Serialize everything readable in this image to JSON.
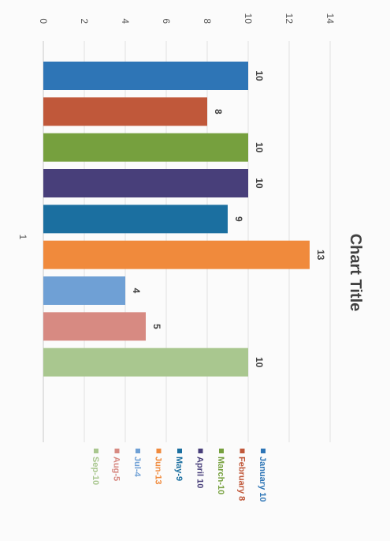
{
  "chart_data": {
    "type": "bar",
    "orientation": "rotated-90-clockwise",
    "title": "Chart Title",
    "categories": [
      "1"
    ],
    "series": [
      {
        "name": "January 10",
        "value": 10,
        "color": "#2E75B6"
      },
      {
        "name": "February 8",
        "value": 8,
        "color": "#C0583A"
      },
      {
        "name": "March-10",
        "value": 10,
        "color": "#76A03E"
      },
      {
        "name": "April 10",
        "value": 10,
        "color": "#483F7A"
      },
      {
        "name": "May-9",
        "value": 9,
        "color": "#1B6FA0"
      },
      {
        "name": "Jun-13",
        "value": 13,
        "color": "#F08A3C"
      },
      {
        "name": "Jul-4",
        "value": 4,
        "color": "#6FA0D5"
      },
      {
        "name": "Aug-5",
        "value": 5,
        "color": "#D78A82"
      },
      {
        "name": "Sep-10",
        "value": 10,
        "color": "#A9C78F"
      }
    ],
    "value_ticks": [
      "0",
      "2",
      "4",
      "6",
      "8",
      "10",
      "12",
      "14"
    ],
    "ylim": [
      0,
      14
    ],
    "grid": true,
    "legend_position": "bottom"
  }
}
